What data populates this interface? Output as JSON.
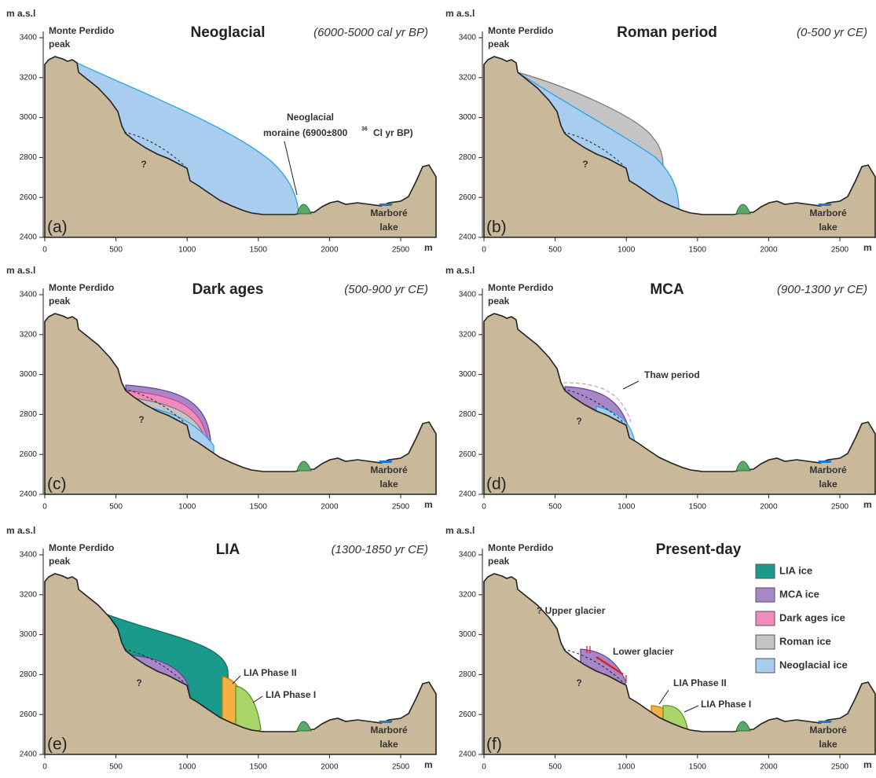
{
  "axes": {
    "y_unit": "m a.s.l",
    "x_unit": "m",
    "yticks": [
      "2400",
      "2600",
      "2800",
      "3000",
      "3200",
      "3400"
    ],
    "xticks": [
      "0",
      "500",
      "1000",
      "1500",
      "2000",
      "2500"
    ]
  },
  "peak": [
    "Monte Perdido",
    "peak"
  ],
  "lake": [
    "Marboré",
    "lake"
  ],
  "panels": [
    {
      "letter": "(a)",
      "title": "Neoglacial",
      "period": "(6000-5000 cal yr BP)",
      "notes": [
        "Neoglacial",
        "moraine (6900±800 ",
        "36",
        "Cl yr BP)",
        "?"
      ]
    },
    {
      "letter": "(b)",
      "title": "Roman period",
      "period": "(0-500 yr CE)",
      "notes": [
        "?"
      ]
    },
    {
      "letter": "(c)",
      "title": "Dark ages",
      "period": "(500-900 yr CE)",
      "notes": [
        "?"
      ]
    },
    {
      "letter": "(d)",
      "title": "MCA",
      "period": "(900-1300 yr CE)",
      "notes": [
        "Thaw period",
        "?"
      ]
    },
    {
      "letter": "(e)",
      "title": "LIA",
      "period": "(1300-1850 yr CE)",
      "notes": [
        "LIA Phase II",
        "LIA Phase I",
        "?"
      ]
    },
    {
      "letter": "(f)",
      "title": "Present-day",
      "notes": [
        "? Upper glacier",
        "Lower glacier",
        "II",
        "I",
        "LIA Phase II",
        "LIA Phase I",
        "?"
      ]
    }
  ],
  "legend": [
    {
      "name": "LIA ice",
      "color": "#1a9a8a"
    },
    {
      "name": "MCA ice",
      "color": "#a688c8"
    },
    {
      "name": "Dark ages ice",
      "color": "#f08cbc"
    },
    {
      "name": "Roman ice",
      "color": "#c4c4c4"
    },
    {
      "name": "Neoglacial ice",
      "color": "#a8cdef"
    }
  ]
}
